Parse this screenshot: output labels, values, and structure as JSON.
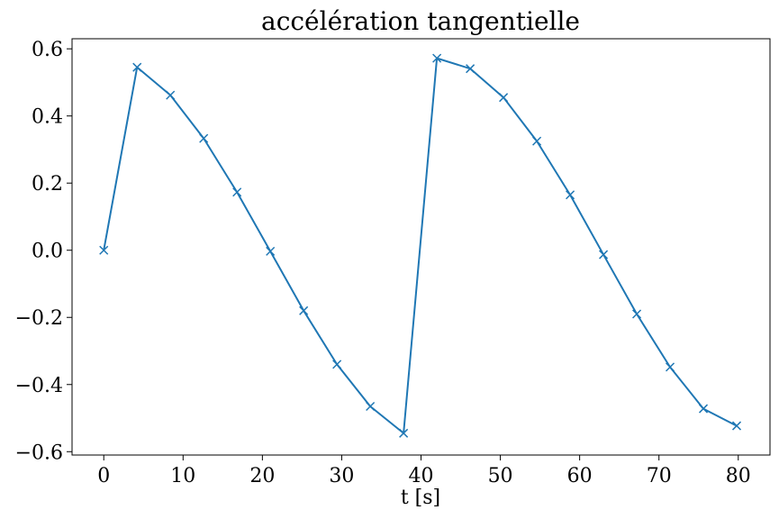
{
  "chart_data": {
    "type": "line",
    "title": "accélération tangentielle",
    "xlabel": "t [s]",
    "ylabel": "",
    "xlim": [
      -4,
      84
    ],
    "ylim": [
      -0.61,
      0.63
    ],
    "grid": false,
    "marker": "x",
    "color": "#1f77b4",
    "x_ticks": [
      0,
      10,
      20,
      30,
      40,
      50,
      60,
      70,
      80
    ],
    "x_tick_labels": [
      "0",
      "10",
      "20",
      "30",
      "40",
      "50",
      "60",
      "70",
      "80"
    ],
    "y_ticks": [
      -0.6,
      -0.4,
      -0.2,
      0.0,
      0.2,
      0.4,
      0.6
    ],
    "y_tick_labels": [
      "−0.6",
      "−0.4",
      "−0.2",
      "0.0",
      "0.2",
      "0.4",
      "0.6"
    ],
    "series": [
      {
        "x": [
          0,
          4.2,
          8.4,
          12.6,
          16.8,
          21.0,
          25.2,
          29.4,
          33.6,
          37.8,
          42.0,
          46.2,
          50.4,
          54.6,
          58.8,
          63.0,
          67.2,
          71.4,
          75.6,
          79.8
        ],
        "y": [
          0.0,
          0.545,
          0.462,
          0.333,
          0.173,
          -0.003,
          -0.18,
          -0.34,
          -0.465,
          -0.545,
          0.572,
          0.541,
          0.455,
          0.325,
          0.165,
          -0.013,
          -0.19,
          -0.348,
          -0.472,
          -0.523
        ]
      }
    ]
  }
}
